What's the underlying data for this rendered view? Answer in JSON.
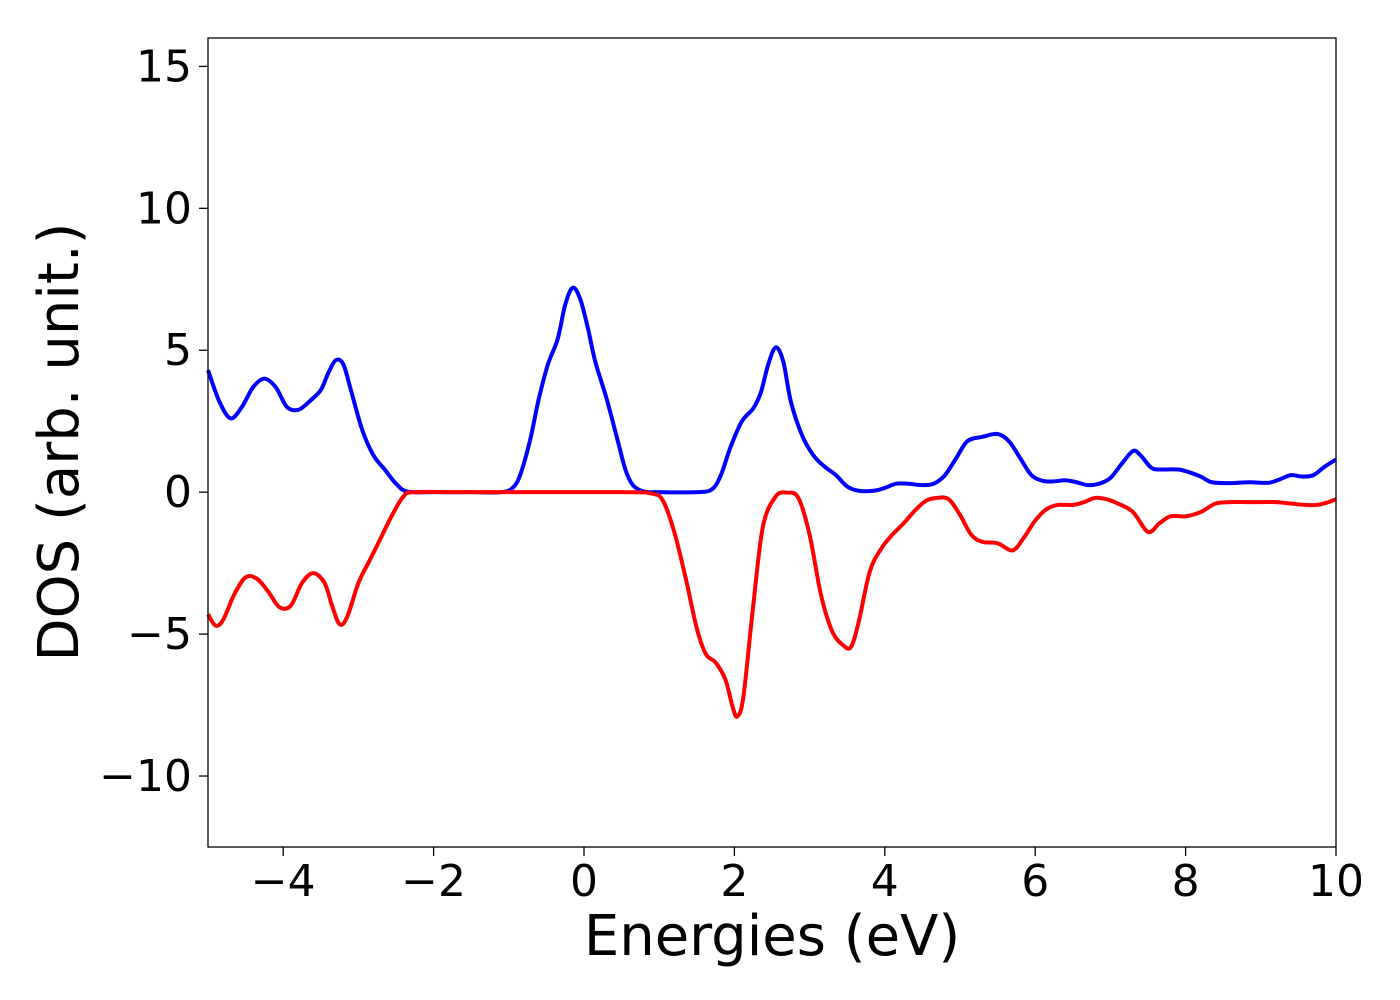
{
  "chart_data": {
    "type": "line",
    "title": "",
    "xlabel": "Energies (eV)",
    "ylabel": "DOS (arb. unit.)",
    "xlim": [
      -5,
      10
    ],
    "ylim": [
      -12.5,
      16
    ],
    "xticks": [
      -4,
      -2,
      0,
      2,
      4,
      6,
      8,
      10
    ],
    "xtick_labels": [
      "−4",
      "−2",
      "0",
      "2",
      "4",
      "6",
      "8",
      "10"
    ],
    "yticks": [
      -10,
      -5,
      0,
      5,
      10,
      15
    ],
    "ytick_labels": [
      "−10",
      "−5",
      "0",
      "5",
      "10",
      "15"
    ],
    "grid": false,
    "legend": "none",
    "series": [
      {
        "color": "#0000ff",
        "points": [
          [
            -5.0,
            4.3
          ],
          [
            -4.85,
            3.2
          ],
          [
            -4.7,
            2.6
          ],
          [
            -4.55,
            3.0
          ],
          [
            -4.4,
            3.7
          ],
          [
            -4.25,
            4.0
          ],
          [
            -4.1,
            3.7
          ],
          [
            -3.95,
            3.0
          ],
          [
            -3.8,
            2.9
          ],
          [
            -3.65,
            3.2
          ],
          [
            -3.5,
            3.6
          ],
          [
            -3.4,
            4.2
          ],
          [
            -3.3,
            4.65
          ],
          [
            -3.2,
            4.5
          ],
          [
            -3.1,
            3.6
          ],
          [
            -2.95,
            2.2
          ],
          [
            -2.8,
            1.3
          ],
          [
            -2.65,
            0.8
          ],
          [
            -2.5,
            0.3
          ],
          [
            -2.35,
            0.02
          ],
          [
            -2.0,
            0.0
          ],
          [
            -1.5,
            0.0
          ],
          [
            -1.1,
            0.0
          ],
          [
            -0.95,
            0.15
          ],
          [
            -0.85,
            0.6
          ],
          [
            -0.72,
            1.8
          ],
          [
            -0.6,
            3.3
          ],
          [
            -0.48,
            4.5
          ],
          [
            -0.35,
            5.4
          ],
          [
            -0.25,
            6.6
          ],
          [
            -0.15,
            7.2
          ],
          [
            -0.05,
            6.8
          ],
          [
            0.05,
            5.8
          ],
          [
            0.15,
            4.6
          ],
          [
            0.3,
            3.3
          ],
          [
            0.45,
            1.8
          ],
          [
            0.55,
            0.8
          ],
          [
            0.65,
            0.25
          ],
          [
            0.8,
            0.02
          ],
          [
            1.0,
            0.0
          ],
          [
            1.5,
            0.0
          ],
          [
            1.7,
            0.1
          ],
          [
            1.82,
            0.6
          ],
          [
            1.95,
            1.6
          ],
          [
            2.1,
            2.5
          ],
          [
            2.25,
            2.95
          ],
          [
            2.35,
            3.5
          ],
          [
            2.45,
            4.5
          ],
          [
            2.55,
            5.1
          ],
          [
            2.65,
            4.6
          ],
          [
            2.75,
            3.2
          ],
          [
            2.9,
            2.0
          ],
          [
            3.05,
            1.3
          ],
          [
            3.2,
            0.9
          ],
          [
            3.35,
            0.6
          ],
          [
            3.5,
            0.2
          ],
          [
            3.65,
            0.05
          ],
          [
            3.85,
            0.05
          ],
          [
            4.0,
            0.15
          ],
          [
            4.15,
            0.3
          ],
          [
            4.3,
            0.3
          ],
          [
            4.5,
            0.25
          ],
          [
            4.65,
            0.3
          ],
          [
            4.8,
            0.6
          ],
          [
            4.95,
            1.2
          ],
          [
            5.1,
            1.8
          ],
          [
            5.3,
            1.95
          ],
          [
            5.5,
            2.05
          ],
          [
            5.65,
            1.8
          ],
          [
            5.8,
            1.2
          ],
          [
            5.95,
            0.6
          ],
          [
            6.1,
            0.4
          ],
          [
            6.25,
            0.38
          ],
          [
            6.4,
            0.42
          ],
          [
            6.55,
            0.35
          ],
          [
            6.7,
            0.25
          ],
          [
            6.85,
            0.3
          ],
          [
            7.0,
            0.5
          ],
          [
            7.15,
            1.0
          ],
          [
            7.3,
            1.45
          ],
          [
            7.4,
            1.3
          ],
          [
            7.55,
            0.85
          ],
          [
            7.7,
            0.8
          ],
          [
            7.9,
            0.8
          ],
          [
            8.05,
            0.7
          ],
          [
            8.2,
            0.55
          ],
          [
            8.35,
            0.35
          ],
          [
            8.6,
            0.32
          ],
          [
            8.85,
            0.35
          ],
          [
            9.1,
            0.33
          ],
          [
            9.25,
            0.45
          ],
          [
            9.4,
            0.6
          ],
          [
            9.55,
            0.55
          ],
          [
            9.7,
            0.6
          ],
          [
            9.85,
            0.9
          ],
          [
            10.0,
            1.15
          ]
        ]
      },
      {
        "color": "#ff0000",
        "points": [
          [
            -5.0,
            -4.3
          ],
          [
            -4.9,
            -4.7
          ],
          [
            -4.8,
            -4.5
          ],
          [
            -4.65,
            -3.6
          ],
          [
            -4.5,
            -3.0
          ],
          [
            -4.35,
            -3.05
          ],
          [
            -4.2,
            -3.5
          ],
          [
            -4.05,
            -4.05
          ],
          [
            -3.9,
            -4.0
          ],
          [
            -3.75,
            -3.2
          ],
          [
            -3.6,
            -2.85
          ],
          [
            -3.45,
            -3.2
          ],
          [
            -3.35,
            -4.0
          ],
          [
            -3.25,
            -4.65
          ],
          [
            -3.15,
            -4.4
          ],
          [
            -3.0,
            -3.2
          ],
          [
            -2.85,
            -2.4
          ],
          [
            -2.7,
            -1.6
          ],
          [
            -2.55,
            -0.8
          ],
          [
            -2.4,
            -0.15
          ],
          [
            -2.25,
            0.0
          ],
          [
            -1.5,
            0.0
          ],
          [
            0.5,
            0.0
          ],
          [
            0.9,
            -0.05
          ],
          [
            1.05,
            -0.3
          ],
          [
            1.2,
            -1.4
          ],
          [
            1.35,
            -3.0
          ],
          [
            1.5,
            -4.8
          ],
          [
            1.62,
            -5.7
          ],
          [
            1.75,
            -6.0
          ],
          [
            1.88,
            -6.6
          ],
          [
            1.98,
            -7.6
          ],
          [
            2.04,
            -7.9
          ],
          [
            2.12,
            -7.2
          ],
          [
            2.25,
            -4.0
          ],
          [
            2.38,
            -1.2
          ],
          [
            2.55,
            -0.15
          ],
          [
            2.7,
            -0.02
          ],
          [
            2.85,
            -0.2
          ],
          [
            3.0,
            -1.5
          ],
          [
            3.15,
            -3.6
          ],
          [
            3.3,
            -4.9
          ],
          [
            3.45,
            -5.4
          ],
          [
            3.55,
            -5.45
          ],
          [
            3.65,
            -4.6
          ],
          [
            3.8,
            -2.8
          ],
          [
            3.95,
            -2.0
          ],
          [
            4.1,
            -1.5
          ],
          [
            4.25,
            -1.1
          ],
          [
            4.4,
            -0.65
          ],
          [
            4.55,
            -0.3
          ],
          [
            4.7,
            -0.2
          ],
          [
            4.85,
            -0.25
          ],
          [
            5.0,
            -0.8
          ],
          [
            5.15,
            -1.5
          ],
          [
            5.3,
            -1.75
          ],
          [
            5.5,
            -1.8
          ],
          [
            5.7,
            -2.05
          ],
          [
            5.85,
            -1.6
          ],
          [
            6.0,
            -1.0
          ],
          [
            6.15,
            -0.6
          ],
          [
            6.3,
            -0.45
          ],
          [
            6.5,
            -0.45
          ],
          [
            6.65,
            -0.35
          ],
          [
            6.8,
            -0.2
          ],
          [
            6.95,
            -0.25
          ],
          [
            7.1,
            -0.4
          ],
          [
            7.3,
            -0.7
          ],
          [
            7.5,
            -1.4
          ],
          [
            7.65,
            -1.1
          ],
          [
            7.8,
            -0.85
          ],
          [
            8.0,
            -0.85
          ],
          [
            8.2,
            -0.7
          ],
          [
            8.4,
            -0.4
          ],
          [
            8.6,
            -0.35
          ],
          [
            8.8,
            -0.35
          ],
          [
            9.0,
            -0.35
          ],
          [
            9.2,
            -0.35
          ],
          [
            9.4,
            -0.4
          ],
          [
            9.6,
            -0.45
          ],
          [
            9.75,
            -0.45
          ],
          [
            9.9,
            -0.35
          ],
          [
            10.0,
            -0.25
          ]
        ]
      }
    ]
  }
}
